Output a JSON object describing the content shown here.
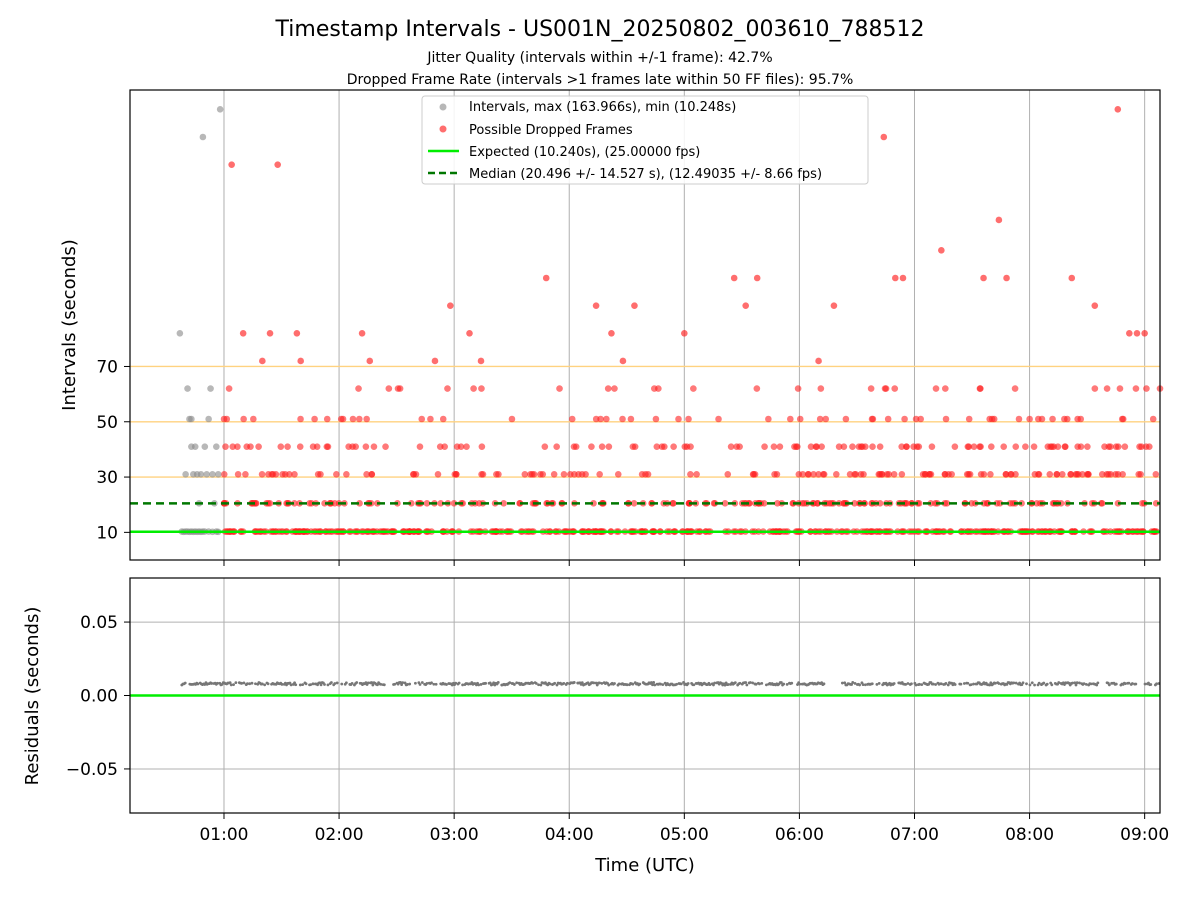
{
  "chart_data": {
    "type": "scatter",
    "title": "Timestamp Intervals - US001N_20250802_003610_788512",
    "subtitle_1": "Jitter Quality (intervals within +/-1 frame): 42.7%",
    "subtitle_2": "Dropped Frame Rate (intervals >1 frames late within 50 FF files): 95.7%",
    "xlabel": "Time (UTC)",
    "top": {
      "ylabel": "Intervals (seconds)",
      "yticks": [
        "10",
        "30",
        "50",
        "70"
      ],
      "ytick_values": [
        10,
        30,
        50,
        70
      ],
      "ylim": [
        0,
        170
      ],
      "threshold_lines": [
        30,
        50,
        70
      ],
      "threshold_color": "#ffd280",
      "legend": {
        "placement": "upper center",
        "entries": [
          {
            "label": "Intervals, max (163.966s), min (10.248s)",
            "kind": "marker",
            "color": "#999999"
          },
          {
            "label": "Possible Dropped Frames",
            "kind": "marker",
            "color": "#ff3030"
          },
          {
            "label": "Expected (10.240s), (25.00000 fps)",
            "kind": "line",
            "color": "#00ee00"
          },
          {
            "label": "Median (20.496 +/- 14.527 s), (12.49035 +/- 8.66 fps)",
            "kind": "dashed",
            "color": "#007700"
          }
        ]
      },
      "expected_value": 10.24,
      "median_value": 20.496,
      "normal_points": [
        {
          "t": "00:38",
          "y": 10.3
        },
        {
          "t": "00:39",
          "y": 10.2
        },
        {
          "t": "00:40",
          "y": 10.3
        },
        {
          "t": "00:41",
          "y": 10.3
        },
        {
          "t": "00:42",
          "y": 10.2
        },
        {
          "t": "00:43",
          "y": 10.3
        },
        {
          "t": "00:44",
          "y": 10.2
        },
        {
          "t": "00:45",
          "y": 10.3
        },
        {
          "t": "00:46",
          "y": 10.2
        },
        {
          "t": "00:47",
          "y": 10.3
        },
        {
          "t": "00:48",
          "y": 10.2
        },
        {
          "t": "00:49",
          "y": 10.3
        },
        {
          "t": "00:50",
          "y": 10.3
        },
        {
          "t": "00:52",
          "y": 10.3
        },
        {
          "t": "00:54",
          "y": 10.2
        },
        {
          "t": "00:56",
          "y": 10.3
        },
        {
          "t": "00:57",
          "y": 10.2
        },
        {
          "t": "00:37",
          "y": 82
        },
        {
          "t": "00:40",
          "y": 31
        },
        {
          "t": "00:41",
          "y": 62
        },
        {
          "t": "00:42",
          "y": 51
        },
        {
          "t": "00:43",
          "y": 51
        },
        {
          "t": "00:43",
          "y": 41
        },
        {
          "t": "00:44",
          "y": 31
        },
        {
          "t": "00:45",
          "y": 41
        },
        {
          "t": "00:46",
          "y": 31
        },
        {
          "t": "00:47",
          "y": 20.5
        },
        {
          "t": "00:48",
          "y": 31
        },
        {
          "t": "00:49",
          "y": 153
        },
        {
          "t": "00:50",
          "y": 41
        },
        {
          "t": "00:51",
          "y": 31
        },
        {
          "t": "00:52",
          "y": 51
        },
        {
          "t": "00:53",
          "y": 62
        },
        {
          "t": "00:54",
          "y": 31
        },
        {
          "t": "00:55",
          "y": 20.5
        },
        {
          "t": "00:56",
          "y": 41
        },
        {
          "t": "00:57",
          "y": 31
        },
        {
          "t": "00:58",
          "y": 163
        }
      ],
      "dropped_points": [
        {
          "t": "01:04",
          "y": 143
        },
        {
          "t": "01:28",
          "y": 143
        },
        {
          "t": "01:10",
          "y": 82
        },
        {
          "t": "01:20",
          "y": 72
        },
        {
          "t": "01:24",
          "y": 82
        },
        {
          "t": "01:38",
          "y": 82
        },
        {
          "t": "01:40",
          "y": 72
        },
        {
          "t": "02:12",
          "y": 82
        },
        {
          "t": "02:16",
          "y": 72
        },
        {
          "t": "02:50",
          "y": 72
        },
        {
          "t": "02:58",
          "y": 92
        },
        {
          "t": "03:08",
          "y": 82
        },
        {
          "t": "03:14",
          "y": 72
        },
        {
          "t": "03:48",
          "y": 102
        },
        {
          "t": "04:14",
          "y": 92
        },
        {
          "t": "04:22",
          "y": 82
        },
        {
          "t": "04:28",
          "y": 72
        },
        {
          "t": "04:34",
          "y": 92
        },
        {
          "t": "05:00",
          "y": 82
        },
        {
          "t": "05:26",
          "y": 102
        },
        {
          "t": "05:32",
          "y": 92
        },
        {
          "t": "05:38",
          "y": 102
        },
        {
          "t": "06:10",
          "y": 72
        },
        {
          "t": "06:18",
          "y": 92
        },
        {
          "t": "06:44",
          "y": 153
        },
        {
          "t": "06:50",
          "y": 102
        },
        {
          "t": "06:54",
          "y": 102
        },
        {
          "t": "07:14",
          "y": 112
        },
        {
          "t": "07:36",
          "y": 102
        },
        {
          "t": "07:44",
          "y": 123
        },
        {
          "t": "07:48",
          "y": 102
        },
        {
          "t": "08:22",
          "y": 102
        },
        {
          "t": "08:34",
          "y": 92
        },
        {
          "t": "08:46",
          "y": 163
        },
        {
          "t": "08:52",
          "y": 82
        },
        {
          "t": "08:56",
          "y": 82
        },
        {
          "t": "09:00",
          "y": 82
        }
      ],
      "dropped_scatter_seed": 7,
      "dropped_time_range": [
        "01:00",
        "09:08"
      ]
    },
    "bottom": {
      "ylabel": "Residuals (seconds)",
      "yticks": [
        "0.05",
        "0.00",
        "−0.05"
      ],
      "ytick_values": [
        0.05,
        0.0,
        -0.05
      ],
      "ylim": [
        -0.08,
        0.08
      ],
      "zero_line_color": "#00ee00",
      "residual_value": 0.008,
      "residual_gaps": [
        [
          "06:14",
          "06:22"
        ],
        [
          "02:24",
          "02:28"
        ],
        [
          "08:36",
          "08:40"
        ],
        [
          "08:56",
          "09:00"
        ]
      ]
    },
    "xticks": [
      "01:00",
      "02:00",
      "03:00",
      "04:00",
      "05:00",
      "06:00",
      "07:00",
      "08:00",
      "09:00"
    ],
    "xlim": [
      "00:11",
      "09:08"
    ],
    "grid": true
  }
}
